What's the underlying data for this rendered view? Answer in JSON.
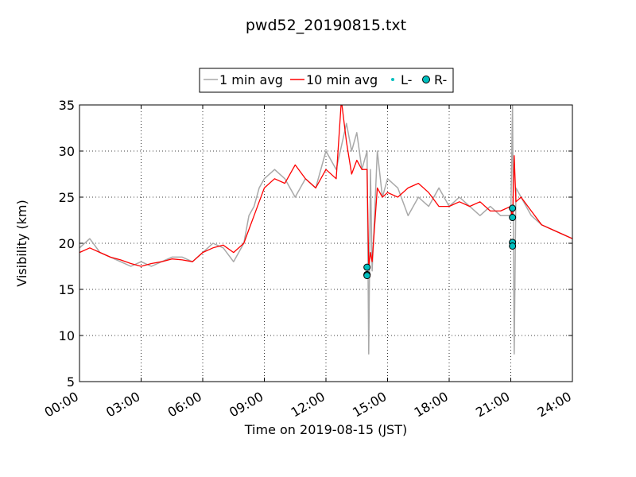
{
  "chart_data": {
    "type": "line",
    "title": "pwd52_20190815.txt",
    "xlabel": "Time on 2019-08-15 (JST)",
    "ylabel": "Visibility (km)",
    "xlim": [
      "00:00",
      "24:00"
    ],
    "ylim": [
      5,
      35
    ],
    "x_ticks": [
      "00:00",
      "03:00",
      "06:00",
      "09:00",
      "12:00",
      "15:00",
      "18:00",
      "21:00",
      "24:00"
    ],
    "y_ticks": [
      5,
      10,
      15,
      20,
      25,
      30,
      35
    ],
    "grid": true,
    "legend_position": "top-center",
    "colors": {
      "one_min": "#a9a9a9",
      "ten_min": "#ff0000",
      "marker": "#00bfbf",
      "marker_edge": "#000000"
    },
    "series": [
      {
        "name": "1 min avg",
        "style": "line",
        "x": [
          "00:00",
          "00:30",
          "01:00",
          "01:30",
          "02:00",
          "02:30",
          "03:00",
          "03:30",
          "04:00",
          "04:30",
          "05:00",
          "05:30",
          "06:00",
          "06:30",
          "07:00",
          "07:30",
          "08:00",
          "08:15",
          "08:30",
          "08:45",
          "09:00",
          "09:30",
          "10:00",
          "10:30",
          "11:00",
          "11:30",
          "12:00",
          "12:30",
          "13:00",
          "13:15",
          "13:30",
          "13:45",
          "14:00",
          "14:05",
          "14:10",
          "14:15",
          "14:30",
          "14:45",
          "15:00",
          "15:30",
          "16:00",
          "16:30",
          "17:00",
          "17:30",
          "18:00",
          "18:30",
          "19:00",
          "19:30",
          "20:00",
          "20:30",
          "21:00",
          "21:05",
          "21:10",
          "21:15",
          "21:30",
          "22:00",
          "22:30",
          "23:00",
          "23:30",
          "24:00"
        ],
        "y": [
          19.5,
          20.5,
          19,
          18.5,
          18,
          17.5,
          18,
          17.5,
          18,
          18.5,
          18.5,
          18,
          19,
          20,
          19.5,
          18,
          20,
          23,
          24,
          26,
          27,
          28,
          27,
          25,
          27,
          26,
          30,
          28,
          33,
          30,
          32,
          28,
          30,
          8,
          28,
          17,
          30,
          25,
          27,
          26,
          23,
          25,
          24,
          26,
          24,
          25,
          24,
          23,
          24,
          23,
          23,
          35,
          8,
          26,
          25,
          23,
          22,
          21.5,
          21,
          20.5
        ]
      },
      {
        "name": "10 min avg",
        "style": "line",
        "x": [
          "00:00",
          "00:30",
          "01:00",
          "01:30",
          "02:00",
          "02:30",
          "03:00",
          "03:30",
          "04:00",
          "04:30",
          "05:00",
          "05:30",
          "06:00",
          "06:30",
          "07:00",
          "07:30",
          "08:00",
          "08:15",
          "08:30",
          "08:45",
          "09:00",
          "09:30",
          "10:00",
          "10:30",
          "11:00",
          "11:30",
          "12:00",
          "12:30",
          "12:45",
          "13:00",
          "13:15",
          "13:30",
          "13:45",
          "14:00",
          "14:05",
          "14:10",
          "14:15",
          "14:30",
          "14:45",
          "15:00",
          "15:30",
          "16:00",
          "16:30",
          "17:00",
          "17:30",
          "18:00",
          "18:30",
          "19:00",
          "19:30",
          "20:00",
          "20:30",
          "21:00",
          "21:05",
          "21:10",
          "21:15",
          "21:30",
          "22:00",
          "22:30",
          "23:00",
          "23:30",
          "24:00"
        ],
        "y": [
          19.0,
          19.5,
          19.0,
          18.5,
          18.2,
          17.8,
          17.5,
          17.8,
          18.0,
          18.3,
          18.2,
          18.0,
          19.0,
          19.5,
          19.8,
          19.0,
          20.0,
          21.5,
          23.0,
          24.5,
          26.0,
          27.0,
          26.5,
          28.5,
          27.0,
          26.0,
          28.0,
          27.0,
          35.5,
          31.0,
          27.5,
          29.0,
          28.0,
          28.0,
          17.5,
          19.0,
          18.0,
          26.0,
          25.0,
          25.5,
          25.0,
          26.0,
          26.5,
          25.5,
          24.0,
          24.0,
          24.5,
          24.0,
          24.5,
          23.5,
          23.5,
          24.0,
          22.5,
          29.5,
          24.5,
          25.0,
          23.5,
          22.0,
          21.5,
          21.0,
          20.5
        ]
      },
      {
        "name": "L-",
        "style": "marker-small",
        "x": [],
        "y": []
      },
      {
        "name": "R-",
        "style": "marker",
        "x": [
          "14:00",
          "14:00",
          "14:00",
          "14:00",
          "21:05",
          "21:05",
          "21:05",
          "21:05"
        ],
        "y": [
          16.6,
          16.6,
          17.4,
          16.5,
          23.8,
          22.8,
          20.1,
          19.7
        ]
      }
    ]
  }
}
